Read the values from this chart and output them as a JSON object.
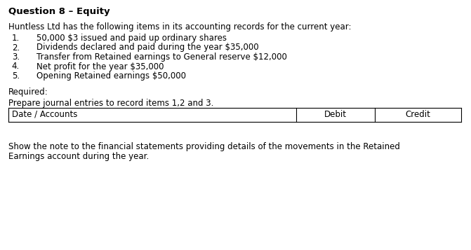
{
  "title": "Question 8 – Equity",
  "intro": "Huntless Ltd has the following items in its accounting records for the current year:",
  "items": [
    "50,000 $3 issued and paid up ordinary shares",
    "Dividends declared and paid during the year $35,000",
    "Transfer from Retained earnings to General reserve $12,000",
    "Net profit for the year $35,000",
    "Opening Retained earnings $50,000"
  ],
  "required_label": "Required:",
  "prepare_text": "Prepare journal entries to record items 1,2 and 3.",
  "table_headers": [
    "Date / Accounts",
    "Debit",
    "Credit"
  ],
  "footer_line1": "Show the note to the financial statements providing details of the movements in the Retained",
  "footer_line2": "Earnings account during the year.",
  "bg_color": "#ffffff",
  "text_color": "#000000",
  "font_size": 8.5,
  "title_font_size": 9.5,
  "fig_width": 6.71,
  "fig_height": 3.57,
  "dpi": 100
}
